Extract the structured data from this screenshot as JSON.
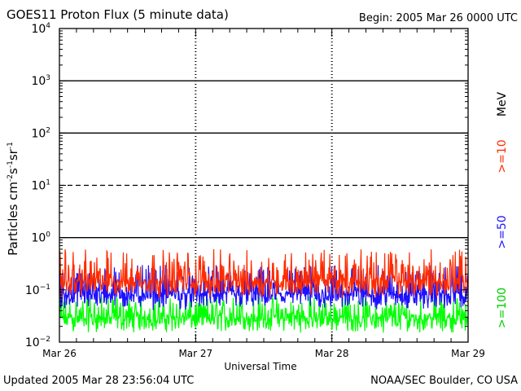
{
  "header": {
    "title": "GOES11 Proton Flux (5 minute data)",
    "begin": "Begin: 2005 Mar 26 0000 UTC"
  },
  "footer": {
    "updated": "Updated 2005 Mar 28 23:56:04 UTC",
    "credit": "NOAA/SEC Boulder, CO USA"
  },
  "colors": {
    "gt10": "#ff2a00",
    "gt50": "#1c10ff",
    "gt100": "#00ff00"
  },
  "chart_data": {
    "type": "line",
    "title": "GOES11 Proton Flux (5 minute data)",
    "xlabel": "Universal Time",
    "ylabel_base": "Particles cm",
    "ylabel_parts": [
      "Particles cm",
      "-2",
      "s",
      "-1",
      "sr",
      "-1"
    ],
    "x_ticks": [
      "Mar 26",
      "Mar 27",
      "Mar 28",
      "Mar 29"
    ],
    "y_tick_exponents": [
      -2,
      -1,
      0,
      1,
      2,
      3,
      4
    ],
    "y_scale": "log",
    "ylim": [
      0.01,
      10000
    ],
    "xlim_days": [
      0,
      3
    ],
    "unit_label": "MeV",
    "series": [
      {
        "name": ">=10",
        "typical_range": [
          0.07,
          0.6
        ],
        "median": 0.15
      },
      {
        "name": ">=50",
        "typical_range": [
          0.04,
          0.3
        ],
        "median": 0.085
      },
      {
        "name": ">=100",
        "typical_range": [
          0.015,
          0.08
        ],
        "median": 0.03
      }
    ],
    "reference_lines": [
      {
        "value": 1,
        "style": "solid"
      },
      {
        "value": 10,
        "style": "dashed"
      },
      {
        "value": 100,
        "style": "solid"
      },
      {
        "value": 1000,
        "style": "solid"
      }
    ]
  }
}
